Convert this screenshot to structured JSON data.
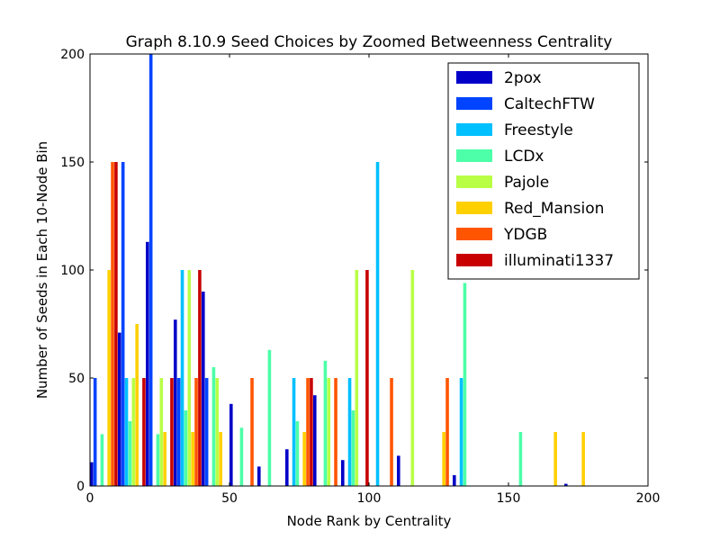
{
  "chart_data": {
    "type": "bar",
    "title": "Graph 8.10.9 Seed Choices by Zoomed Betweenness Centrality",
    "xlabel": "Node Rank by Centrality",
    "ylabel": "Number of Seeds in Each 10-Node Bin",
    "xlim": [
      0,
      200
    ],
    "ylim": [
      0,
      200
    ],
    "xticks": [
      0,
      50,
      100,
      150,
      200
    ],
    "yticks": [
      0,
      50,
      100,
      150,
      200
    ],
    "grid": false,
    "legend_position": "top-right",
    "bin_starts": [
      0,
      10,
      20,
      30,
      40,
      50,
      60,
      70,
      80,
      90,
      100,
      110,
      120,
      130,
      140,
      150,
      160,
      170,
      180,
      190
    ],
    "series": [
      {
        "name": "2pox",
        "color": "#0000c8",
        "values": [
          11,
          71,
          113,
          77,
          90,
          38,
          9,
          17,
          42,
          12,
          0,
          14,
          0,
          5,
          0,
          0,
          0,
          1,
          0,
          0
        ]
      },
      {
        "name": "CaltechFTW",
        "color": "#0044ff",
        "values": [
          50,
          150,
          200,
          50,
          50,
          0,
          0,
          0,
          0,
          0,
          0,
          0,
          0,
          0,
          0,
          0,
          0,
          0,
          0,
          0
        ]
      },
      {
        "name": "Freestyle",
        "color": "#00c0ff",
        "values": [
          0,
          50,
          0,
          100,
          0,
          0,
          0,
          50,
          0,
          50,
          150,
          0,
          0,
          50,
          0,
          0,
          0,
          0,
          0,
          0
        ]
      },
      {
        "name": "LCDx",
        "color": "#4dffa8",
        "values": [
          24,
          30,
          24,
          35,
          55,
          27,
          63,
          30,
          58,
          35,
          0,
          0,
          0,
          94,
          0,
          25,
          0,
          0,
          0,
          0
        ]
      },
      {
        "name": "Pajole",
        "color": "#b8ff46",
        "values": [
          0,
          50,
          50,
          100,
          50,
          0,
          0,
          0,
          50,
          100,
          0,
          100,
          0,
          0,
          0,
          0,
          0,
          0,
          0,
          0
        ]
      },
      {
        "name": "Red_Mansion",
        "color": "#ffd000",
        "values": [
          100,
          75,
          25,
          25,
          25,
          0,
          0,
          25,
          0,
          0,
          0,
          0,
          25,
          0,
          0,
          0,
          25,
          25,
          0,
          0
        ]
      },
      {
        "name": "YDGB",
        "color": "#ff5500",
        "values": [
          150,
          0,
          0,
          50,
          0,
          50,
          0,
          50,
          50,
          0,
          50,
          0,
          50,
          0,
          0,
          0,
          0,
          0,
          0,
          0
        ]
      },
      {
        "name": "illuminati1337",
        "color": "#c80000",
        "values": [
          150,
          50,
          50,
          100,
          0,
          0,
          0,
          50,
          0,
          100,
          0,
          0,
          0,
          0,
          0,
          0,
          0,
          0,
          0,
          0
        ]
      }
    ]
  }
}
